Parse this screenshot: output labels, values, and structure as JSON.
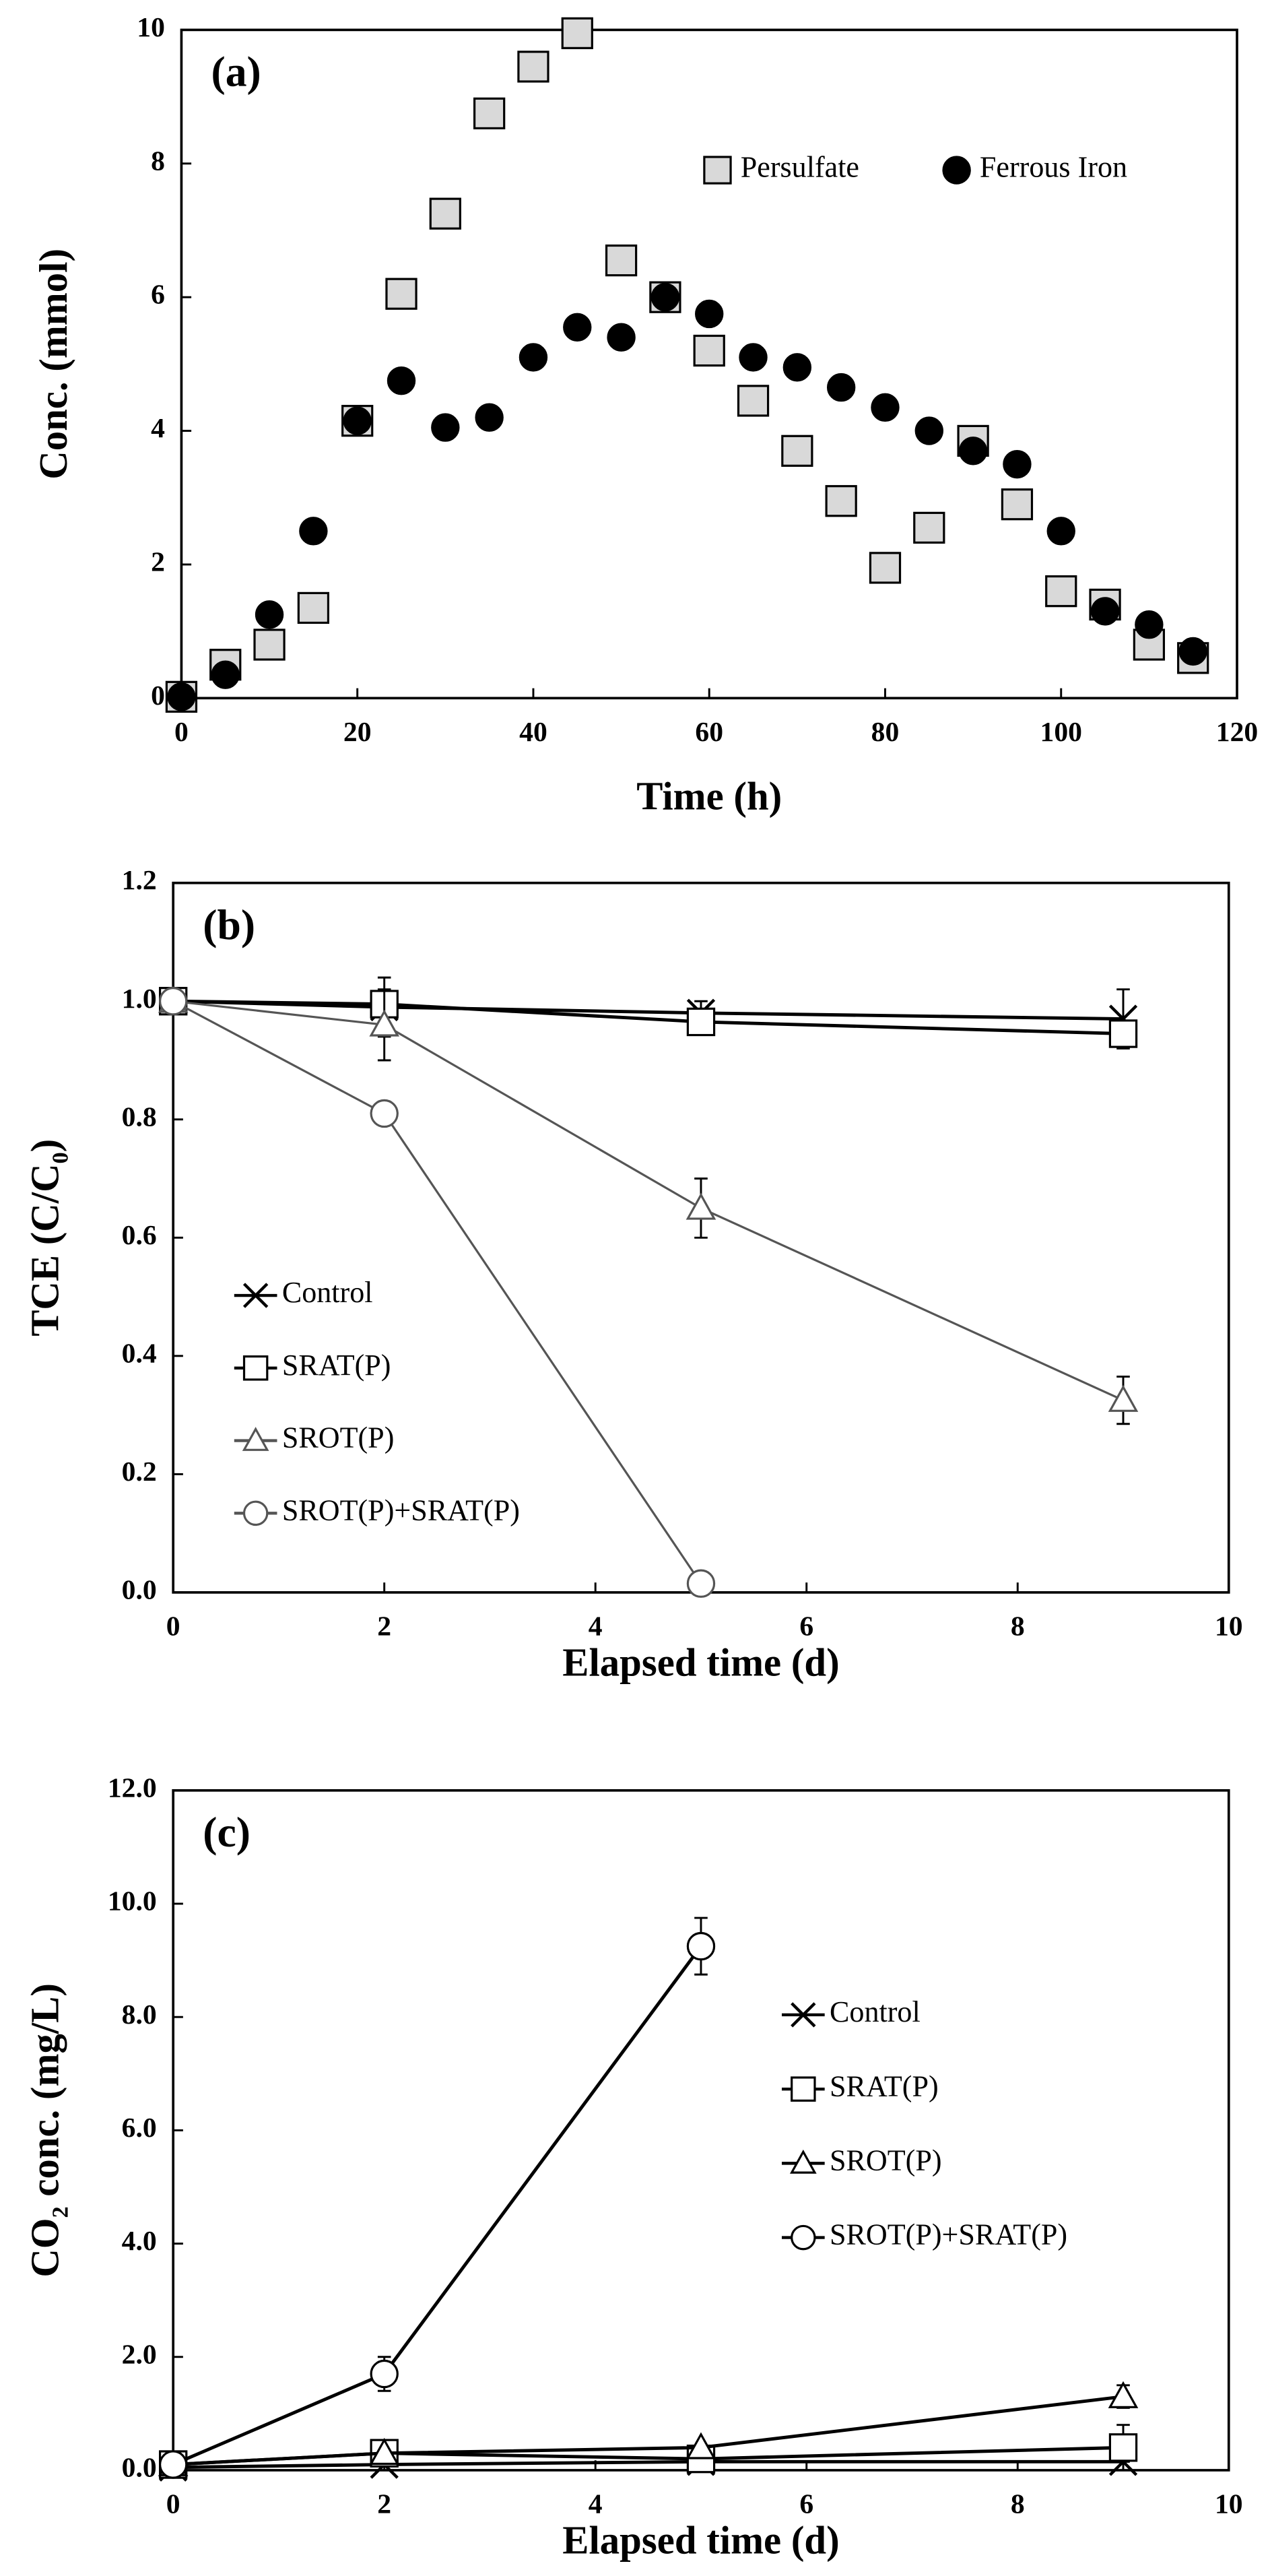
{
  "chart_data": [
    {
      "type": "scatter",
      "label": "(a)",
      "xlabel": "Time (h)",
      "ylabel": "Conc. (mmol)",
      "xlim": [
        0,
        120
      ],
      "xticks": [
        0,
        20,
        40,
        60,
        80,
        100,
        120
      ],
      "ylim": [
        0,
        10
      ],
      "yticks": [
        0,
        2,
        4,
        6,
        8,
        10
      ],
      "legend": "upper right",
      "series": [
        {
          "name": "Persulfate",
          "marker": "square",
          "color": "#d9d9d9",
          "x": [
            0,
            5,
            10,
            15,
            20,
            25,
            30,
            35,
            40,
            45,
            50,
            55,
            60,
            65,
            70,
            75,
            80,
            85,
            90,
            95,
            100,
            105,
            110,
            115
          ],
          "values": [
            0.02,
            0.5,
            0.8,
            1.35,
            4.15,
            6.05,
            7.25,
            8.75,
            9.45,
            9.95,
            6.55,
            6.0,
            5.2,
            4.45,
            3.7,
            2.95,
            1.95,
            2.55,
            3.85,
            2.9,
            1.6,
            1.4,
            0.8,
            0.6
          ]
        },
        {
          "name": "Ferrous Iron",
          "marker": "circle",
          "color": "#000000",
          "x": [
            0,
            5,
            10,
            15,
            20,
            25,
            30,
            35,
            40,
            45,
            50,
            55,
            60,
            65,
            70,
            75,
            80,
            85,
            90,
            95,
            100,
            105,
            110,
            115
          ],
          "values": [
            0.02,
            0.35,
            1.25,
            2.5,
            4.15,
            4.75,
            4.05,
            4.2,
            5.1,
            5.55,
            5.4,
            6.0,
            5.75,
            5.1,
            4.95,
            4.65,
            4.35,
            4.0,
            3.7,
            3.5,
            2.5,
            1.3,
            1.1,
            0.7
          ]
        }
      ]
    },
    {
      "type": "line",
      "label": "(b)",
      "xlabel": "Elapsed time (d)",
      "ylabel": {
        "text": "TCE  (C/C",
        "sub": "0",
        "after": ")"
      },
      "xlim": [
        0,
        10
      ],
      "xticks": [
        0,
        2,
        4,
        6,
        8,
        10
      ],
      "ylim": [
        0,
        1.2
      ],
      "yticks": [
        {
          "value": 0,
          "label": "0.0"
        },
        {
          "value": 0.2,
          "label": "0.2"
        },
        {
          "value": 0.4,
          "label": "0.4"
        },
        {
          "value": 0.6,
          "label": "0.6"
        },
        {
          "value": 0.8,
          "label": "0.8"
        },
        {
          "value": 1.0,
          "label": "1.0"
        },
        {
          "value": 1.2,
          "label": "1.2"
        }
      ],
      "legend": "lower left",
      "x": [
        0,
        2,
        5,
        9
      ],
      "series": [
        {
          "name": "Control",
          "marker": "x",
          "color": "#000000",
          "values": [
            1.0,
            0.99,
            0.98,
            0.97
          ],
          "errors": [
            0,
            0.05,
            0.02,
            0.05
          ]
        },
        {
          "name": "SRAT(P)",
          "marker": "square",
          "color": "#000000",
          "values": [
            1.0,
            0.995,
            0.965,
            0.945
          ],
          "errors": [
            0,
            0.02,
            0.02,
            0.02
          ]
        },
        {
          "name": "SROT(P)",
          "marker": "triangle",
          "color": "#555555",
          "values": [
            1.0,
            0.96,
            0.65,
            0.325
          ],
          "errors": [
            0,
            0.06,
            0.05,
            0.04
          ]
        },
        {
          "name": "SROT(P)+SRAT(P)",
          "marker": "circle",
          "color": "#555555",
          "values": [
            1.0,
            0.81,
            0.015,
            null
          ],
          "errors": [
            0,
            0.01,
            0.01,
            null
          ]
        }
      ]
    },
    {
      "type": "line",
      "label": "(c)",
      "xlabel": "Elapsed time (d)",
      "ylabel": {
        "text": "CO",
        "sub": "2",
        "after": " conc. (mg/L)"
      },
      "xlim": [
        0,
        10
      ],
      "xticks": [
        0,
        2,
        4,
        6,
        8,
        10
      ],
      "ylim": [
        0,
        12
      ],
      "yticks": [
        {
          "value": 0,
          "label": "0.0"
        },
        {
          "value": 2,
          "label": "2.0"
        },
        {
          "value": 4,
          "label": "4.0"
        },
        {
          "value": 6,
          "label": "6.0"
        },
        {
          "value": 8,
          "label": "8.0"
        },
        {
          "value": 10,
          "label": "10.0"
        },
        {
          "value": 12,
          "label": "12.0"
        }
      ],
      "legend": "center right",
      "x": [
        0,
        2,
        5,
        9
      ],
      "series": [
        {
          "name": "Control",
          "marker": "x",
          "color": "#000000",
          "values": [
            0.05,
            0.1,
            0.15,
            0.15
          ],
          "errors": [
            0,
            0,
            0,
            0
          ]
        },
        {
          "name": "SRAT(P)",
          "marker": "square",
          "color": "#000000",
          "values": [
            0.1,
            0.3,
            0.2,
            0.4
          ],
          "errors": [
            0,
            0,
            0,
            0.4
          ]
        },
        {
          "name": "SROT(P)",
          "marker": "triangle",
          "color": "#000000",
          "values": [
            0.1,
            0.3,
            0.4,
            1.3
          ],
          "errors": [
            0,
            0,
            0,
            0.2
          ]
        },
        {
          "name": "SROT(P)+SRAT(P)",
          "marker": "circle",
          "color": "#000000",
          "values": [
            0.1,
            1.7,
            9.25,
            null
          ],
          "errors": [
            0,
            0.3,
            0.5,
            null
          ]
        }
      ]
    }
  ]
}
